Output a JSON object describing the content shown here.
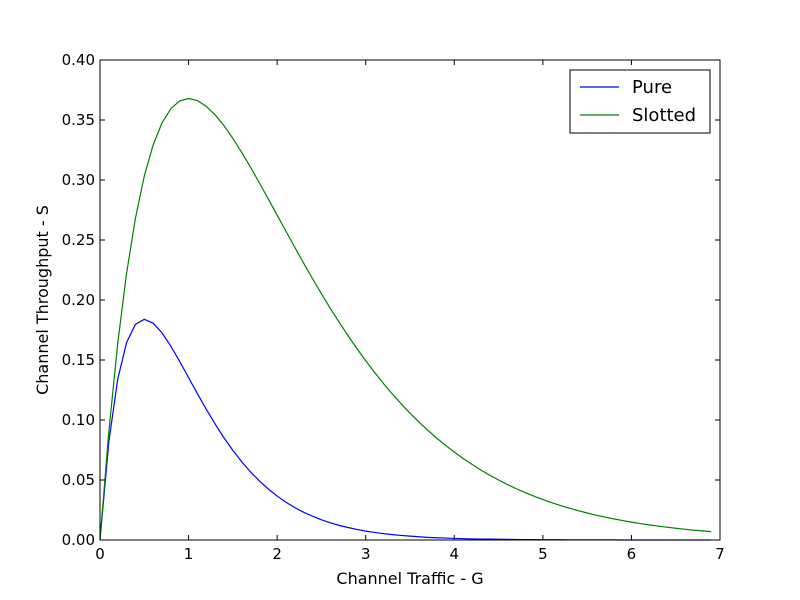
{
  "chart_data": {
    "type": "line",
    "xlabel": "Channel Traffic - G",
    "ylabel": "Channel Throughput - S",
    "xlim": [
      0,
      7
    ],
    "ylim": [
      0,
      0.4
    ],
    "x_ticks": [
      "0",
      "1",
      "2",
      "3",
      "4",
      "5",
      "6",
      "7"
    ],
    "y_ticks": [
      "0.00",
      "0.05",
      "0.10",
      "0.15",
      "0.20",
      "0.25",
      "0.30",
      "0.35",
      "0.40"
    ],
    "grid": false,
    "legend_position": "top-right",
    "series": [
      {
        "name": "Pure",
        "color": "#0000ff",
        "x": [
          0,
          0.1,
          0.2,
          0.3,
          0.4,
          0.5,
          0.6,
          0.7,
          0.8,
          0.9,
          1.0,
          1.1,
          1.2,
          1.3,
          1.4,
          1.5,
          1.6,
          1.7,
          1.8,
          1.9,
          2.0,
          2.1,
          2.2,
          2.3,
          2.4,
          2.5,
          2.6,
          2.7,
          2.8,
          2.9,
          3.0,
          3.1,
          3.2,
          3.3,
          3.4,
          3.5,
          3.6,
          3.7,
          3.8,
          3.9,
          4.0,
          4.1,
          4.2,
          4.3,
          4.4,
          4.5,
          4.6,
          4.7,
          4.8,
          4.9,
          5.0,
          5.1,
          5.2,
          5.3,
          5.4,
          5.5,
          5.6,
          5.7,
          5.8,
          5.9,
          6.0,
          6.1,
          6.2,
          6.3,
          6.4,
          6.5,
          6.6,
          6.7,
          6.8,
          6.9
        ],
        "y": [
          0,
          0.0819,
          0.134,
          0.1646,
          0.1797,
          0.1839,
          0.1807,
          0.1726,
          0.1615,
          0.1488,
          0.1353,
          0.1219,
          0.1089,
          0.0966,
          0.0851,
          0.0747,
          0.0652,
          0.0567,
          0.0492,
          0.0425,
          0.0366,
          0.0315,
          0.027,
          0.0231,
          0.0198,
          0.0168,
          0.0143,
          0.0122,
          0.0104,
          0.0088,
          0.0074,
          0.0063,
          0.0053,
          0.0045,
          0.0038,
          0.0032,
          0.0027,
          0.0022,
          0.0019,
          0.0016,
          0.0013,
          0.0011,
          0.0009,
          0.0008,
          0.0007,
          0.0006,
          0.0005,
          0.0004,
          0.0003,
          0.0003,
          0.0002,
          0.0002,
          0.0002,
          0.0001,
          0.0001,
          0.0001,
          0.0001,
          0.0001,
          0.0001,
          0.0,
          0.0,
          0.0,
          0.0,
          0.0,
          0.0,
          0.0,
          0.0,
          0.0,
          0.0,
          0.0
        ]
      },
      {
        "name": "Slotted",
        "color": "#008000",
        "x": [
          0,
          0.1,
          0.2,
          0.3,
          0.4,
          0.5,
          0.6,
          0.7,
          0.8,
          0.9,
          1.0,
          1.1,
          1.2,
          1.3,
          1.4,
          1.5,
          1.6,
          1.7,
          1.8,
          1.9,
          2.0,
          2.1,
          2.2,
          2.3,
          2.4,
          2.5,
          2.6,
          2.7,
          2.8,
          2.9,
          3.0,
          3.1,
          3.2,
          3.3,
          3.4,
          3.5,
          3.6,
          3.7,
          3.8,
          3.9,
          4.0,
          4.1,
          4.2,
          4.3,
          4.4,
          4.5,
          4.6,
          4.7,
          4.8,
          4.9,
          5.0,
          5.1,
          5.2,
          5.3,
          5.4,
          5.5,
          5.6,
          5.7,
          5.8,
          5.9,
          6.0,
          6.1,
          6.2,
          6.3,
          6.4,
          6.5,
          6.6,
          6.7,
          6.8,
          6.9
        ],
        "y": [
          0,
          0.0905,
          0.1637,
          0.2222,
          0.2681,
          0.3033,
          0.3293,
          0.3476,
          0.3595,
          0.3659,
          0.3679,
          0.3662,
          0.3614,
          0.3543,
          0.3452,
          0.3347,
          0.323,
          0.3106,
          0.2975,
          0.2842,
          0.2707,
          0.2572,
          0.2438,
          0.2306,
          0.2177,
          0.2052,
          0.1931,
          0.1815,
          0.1703,
          0.1596,
          0.1494,
          0.1397,
          0.1304,
          0.1217,
          0.1135,
          0.1057,
          0.0984,
          0.0915,
          0.085,
          0.0789,
          0.0733,
          0.0679,
          0.063,
          0.0583,
          0.054,
          0.05,
          0.0462,
          0.0427,
          0.0395,
          0.0365,
          0.0337,
          0.0311,
          0.0287,
          0.0265,
          0.0244,
          0.0225,
          0.0207,
          0.0191,
          0.0176,
          0.0162,
          0.0149,
          0.0137,
          0.0126,
          0.0116,
          0.0107,
          0.0098,
          0.009,
          0.0082,
          0.0076,
          0.007
        ]
      }
    ]
  }
}
